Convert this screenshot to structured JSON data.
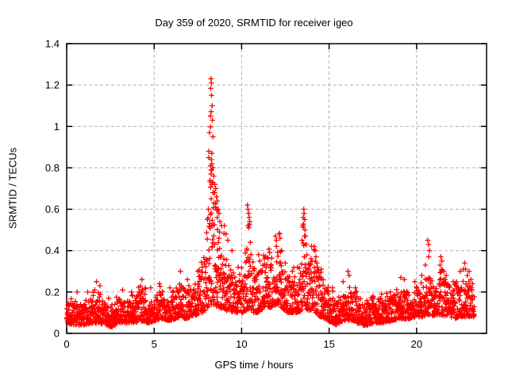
{
  "chart_data": {
    "type": "scatter",
    "title": "Day 359 of 2020, SRMTID for receiver igeo",
    "xlabel": "GPS time / hours",
    "ylabel": "SRMTID / TECUs",
    "xlim": [
      0,
      24
    ],
    "ylim": [
      0,
      1.4
    ],
    "xtick_values": [
      0,
      5,
      10,
      15,
      20
    ],
    "xtick_labels": [
      "0",
      "5",
      "10",
      "15",
      "20"
    ],
    "ytick_values": [
      0,
      0.2,
      0.4,
      0.6,
      0.8,
      1,
      1.2,
      1.4
    ],
    "ytick_labels": [
      "0",
      "0.2",
      "0.4",
      "0.6",
      "0.8",
      "1",
      "1.2",
      "1.4"
    ],
    "grid": true,
    "legend_position": "none",
    "marker": "plus",
    "marker_size": 7,
    "marker_color": "#ff0000",
    "grid_color": "#b0b0b0",
    "axis_color": "#000000",
    "text_color": "#000000",
    "series_name": "SRMTID",
    "sample_count": 2400,
    "seed": 359,
    "t_start": 0,
    "t_end": 23.3,
    "band": [
      [
        0,
        0.05,
        0.16
      ],
      [
        0.5,
        0.04,
        0.14
      ],
      [
        1.0,
        0.04,
        0.15
      ],
      [
        1.5,
        0.05,
        0.19
      ],
      [
        1.9,
        0.05,
        0.2
      ],
      [
        2.2,
        0.04,
        0.14
      ],
      [
        2.6,
        0.03,
        0.13
      ],
      [
        3.0,
        0.05,
        0.17
      ],
      [
        3.4,
        0.05,
        0.15
      ],
      [
        3.8,
        0.05,
        0.17
      ],
      [
        4.3,
        0.06,
        0.22
      ],
      [
        4.7,
        0.05,
        0.17
      ],
      [
        5.0,
        0.06,
        0.18
      ],
      [
        5.4,
        0.07,
        0.21
      ],
      [
        5.8,
        0.06,
        0.18
      ],
      [
        6.2,
        0.07,
        0.22
      ],
      [
        6.5,
        0.08,
        0.25
      ],
      [
        6.8,
        0.07,
        0.2
      ],
      [
        7.1,
        0.08,
        0.22
      ],
      [
        7.5,
        0.09,
        0.27
      ],
      [
        7.8,
        0.1,
        0.32
      ],
      [
        8.0,
        0.12,
        0.45
      ],
      [
        8.2,
        0.14,
        0.6
      ],
      [
        8.45,
        0.14,
        0.55
      ],
      [
        8.7,
        0.12,
        0.46
      ],
      [
        9.0,
        0.12,
        0.4
      ],
      [
        9.3,
        0.1,
        0.33
      ],
      [
        9.6,
        0.1,
        0.28
      ],
      [
        9.9,
        0.1,
        0.3
      ],
      [
        10.15,
        0.1,
        0.31
      ],
      [
        10.4,
        0.12,
        0.46
      ],
      [
        10.65,
        0.1,
        0.33
      ],
      [
        10.9,
        0.1,
        0.3
      ],
      [
        11.2,
        0.11,
        0.33
      ],
      [
        11.5,
        0.12,
        0.36
      ],
      [
        11.8,
        0.13,
        0.41
      ],
      [
        12.1,
        0.14,
        0.45
      ],
      [
        12.35,
        0.12,
        0.37
      ],
      [
        12.6,
        0.1,
        0.31
      ],
      [
        12.9,
        0.1,
        0.28
      ],
      [
        13.2,
        0.1,
        0.3
      ],
      [
        13.4,
        0.11,
        0.36
      ],
      [
        13.55,
        0.14,
        0.5
      ],
      [
        13.8,
        0.11,
        0.38
      ],
      [
        14.2,
        0.1,
        0.36
      ],
      [
        14.5,
        0.08,
        0.28
      ],
      [
        15.0,
        0.06,
        0.2
      ],
      [
        15.4,
        0.04,
        0.16
      ],
      [
        15.8,
        0.06,
        0.2
      ],
      [
        16.1,
        0.06,
        0.23
      ],
      [
        16.45,
        0.06,
        0.19
      ],
      [
        16.8,
        0.04,
        0.16
      ],
      [
        17.2,
        0.04,
        0.15
      ],
      [
        17.6,
        0.05,
        0.16
      ],
      [
        18.0,
        0.05,
        0.17
      ],
      [
        18.5,
        0.06,
        0.18
      ],
      [
        19.0,
        0.07,
        0.2
      ],
      [
        19.3,
        0.07,
        0.22
      ],
      [
        19.6,
        0.07,
        0.19
      ],
      [
        20.0,
        0.08,
        0.22
      ],
      [
        20.4,
        0.08,
        0.26
      ],
      [
        20.7,
        0.09,
        0.28
      ],
      [
        21.0,
        0.08,
        0.24
      ],
      [
        21.4,
        0.09,
        0.3
      ],
      [
        21.8,
        0.08,
        0.24
      ],
      [
        22.2,
        0.07,
        0.22
      ],
      [
        22.5,
        0.08,
        0.26
      ],
      [
        22.8,
        0.08,
        0.25
      ],
      [
        23.0,
        0.08,
        0.26
      ],
      [
        23.3,
        0.08,
        0.2
      ]
    ],
    "outliers": [
      [
        0.6,
        0.2
      ],
      [
        1.2,
        0.2
      ],
      [
        1.7,
        0.25
      ],
      [
        1.9,
        0.23
      ],
      [
        2.4,
        0.17
      ],
      [
        3.2,
        0.21
      ],
      [
        3.7,
        0.2
      ],
      [
        4.3,
        0.26
      ],
      [
        4.8,
        0.22
      ],
      [
        5.3,
        0.24
      ],
      [
        5.9,
        0.22
      ],
      [
        6.5,
        0.3
      ],
      [
        6.9,
        0.26
      ],
      [
        7.5,
        0.3
      ],
      [
        7.75,
        0.32
      ],
      [
        8.05,
        0.55
      ],
      [
        8.1,
        0.6
      ],
      [
        8.25,
        1.23
      ],
      [
        8.27,
        1.21
      ],
      [
        8.28,
        1.15
      ],
      [
        8.31,
        1.1
      ],
      [
        8.22,
        1.05
      ],
      [
        8.33,
        1.03
      ],
      [
        8.16,
        0.97
      ],
      [
        8.36,
        0.95
      ],
      [
        8.12,
        0.88
      ],
      [
        8.3,
        0.87
      ],
      [
        8.27,
        0.84
      ],
      [
        8.22,
        0.81
      ],
      [
        8.36,
        0.8
      ],
      [
        8.3,
        0.79
      ],
      [
        8.25,
        0.77
      ],
      [
        8.41,
        0.76
      ],
      [
        8.2,
        0.74
      ],
      [
        8.31,
        0.73
      ],
      [
        8.46,
        0.72
      ],
      [
        8.52,
        0.7
      ],
      [
        8.36,
        0.68
      ],
      [
        8.56,
        0.66
      ],
      [
        8.26,
        0.65
      ],
      [
        8.61,
        0.64
      ],
      [
        8.41,
        0.63
      ],
      [
        8.51,
        0.61
      ],
      [
        8.66,
        0.6
      ],
      [
        8.71,
        0.58
      ],
      [
        8.61,
        0.56
      ],
      [
        8.76,
        0.54
      ],
      [
        8.86,
        0.52
      ],
      [
        9.01,
        0.52
      ],
      [
        9.11,
        0.48
      ],
      [
        9.21,
        0.45
      ],
      [
        9.45,
        0.4
      ],
      [
        9.8,
        0.32
      ],
      [
        10.33,
        0.62
      ],
      [
        10.36,
        0.6
      ],
      [
        10.4,
        0.58
      ],
      [
        10.43,
        0.56
      ],
      [
        10.46,
        0.54
      ],
      [
        10.4,
        0.52
      ],
      [
        10.5,
        0.44
      ],
      [
        10.3,
        0.41
      ],
      [
        10.97,
        0.38
      ],
      [
        11.04,
        0.35
      ],
      [
        11.3,
        0.36
      ],
      [
        11.6,
        0.39
      ],
      [
        11.93,
        0.47
      ],
      [
        11.99,
        0.45
      ],
      [
        12.15,
        0.48
      ],
      [
        12.2,
        0.46
      ],
      [
        12.28,
        0.4
      ],
      [
        12.5,
        0.34
      ],
      [
        12.9,
        0.3
      ],
      [
        13.2,
        0.32
      ],
      [
        13.45,
        0.45
      ],
      [
        13.5,
        0.52
      ],
      [
        13.52,
        0.56
      ],
      [
        13.55,
        0.6
      ],
      [
        13.57,
        0.58
      ],
      [
        13.6,
        0.55
      ],
      [
        13.62,
        0.5
      ],
      [
        13.65,
        0.47
      ],
      [
        13.7,
        0.43
      ],
      [
        14.15,
        0.42
      ],
      [
        14.2,
        0.4
      ],
      [
        14.25,
        0.37
      ],
      [
        14.3,
        0.34
      ],
      [
        14.55,
        0.31
      ],
      [
        15.2,
        0.22
      ],
      [
        15.8,
        0.25
      ],
      [
        16.08,
        0.3
      ],
      [
        16.14,
        0.28
      ],
      [
        16.5,
        0.22
      ],
      [
        17.5,
        0.18
      ],
      [
        18.0,
        0.19
      ],
      [
        18.5,
        0.2
      ],
      [
        19.1,
        0.27
      ],
      [
        19.3,
        0.26
      ],
      [
        19.9,
        0.25
      ],
      [
        20.3,
        0.28
      ],
      [
        20.64,
        0.45
      ],
      [
        20.69,
        0.43
      ],
      [
        20.74,
        0.4
      ],
      [
        20.69,
        0.37
      ],
      [
        20.5,
        0.33
      ],
      [
        21.38,
        0.37
      ],
      [
        21.44,
        0.35
      ],
      [
        21.34,
        0.33
      ],
      [
        21.7,
        0.28
      ],
      [
        22.1,
        0.25
      ],
      [
        22.5,
        0.3
      ],
      [
        22.68,
        0.31
      ],
      [
        22.75,
        0.34
      ],
      [
        22.8,
        0.31
      ],
      [
        22.9,
        0.28
      ],
      [
        23.0,
        0.3
      ],
      [
        23.1,
        0.26
      ],
      [
        23.2,
        0.24
      ]
    ]
  }
}
